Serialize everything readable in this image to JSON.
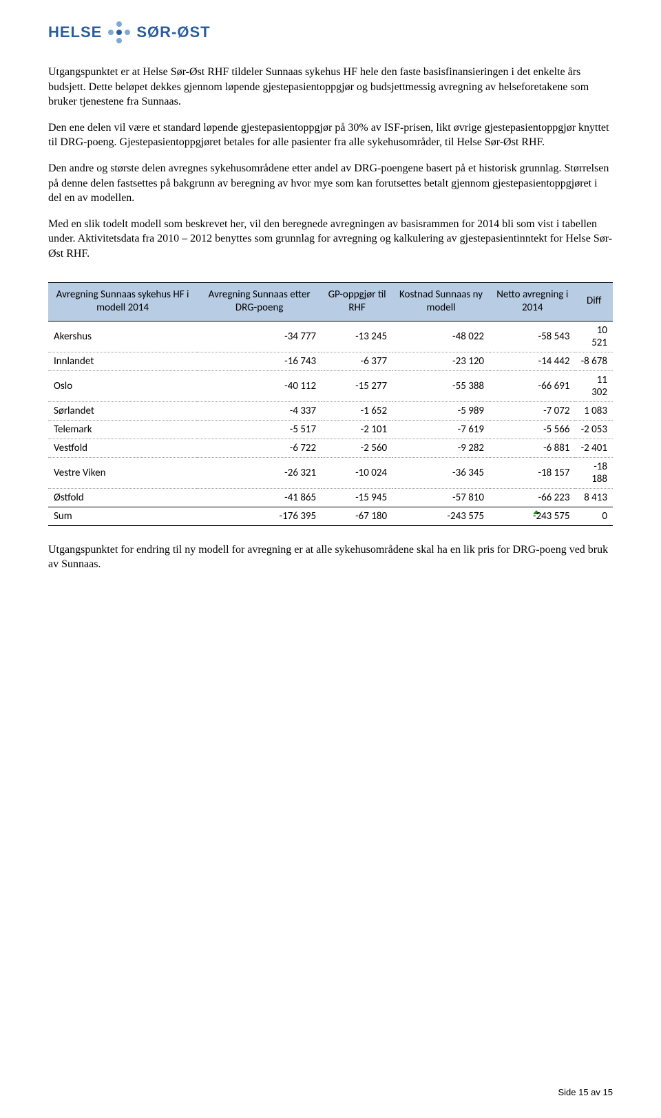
{
  "logo": {
    "left": "HELSE",
    "right": "SØR-ØST"
  },
  "paragraphs": [
    "Utgangspunktet er at Helse Sør-Øst RHF tildeler Sunnaas sykehus HF hele den faste basisfinansieringen i det enkelte års budsjett. Dette beløpet dekkes gjennom løpende gjestepasientoppgjør og budsjettmessig avregning av helseforetakene som bruker tjenestene fra Sunnaas.",
    "Den ene delen vil være et standard løpende gjestepasientoppgjør på 30% av ISF-prisen, likt øvrige gjestepasientoppgjør knyttet til DRG-poeng. Gjestepasientoppgjøret betales for alle pasienter fra alle sykehusområder, til Helse Sør-Øst RHF.",
    "Den andre og største delen avregnes sykehusområdene etter andel av DRG-poengene basert på et historisk grunnlag. Størrelsen på denne delen fastsettes på bakgrunn av beregning av hvor mye som kan forutsettes betalt gjennom gjestepasientoppgjøret i del en av modellen.",
    "Med en slik todelt modell som beskrevet her, vil den beregnede avregningen av basisrammen for 2014 bli som vist i tabellen under. Aktivitetsdata fra 2010 – 2012 benyttes som grunnlag for avregning og kalkulering av gjestepasientinntekt for Helse Sør-Øst RHF."
  ],
  "table": {
    "headers": [
      "Avregning Sunnaas sykehus HF i modell 2014",
      "Avregning Sunnaas etter DRG-poeng",
      "GP-oppgjør til RHF",
      "Kostnad Sunnaas ny modell",
      "Netto avregning i 2014",
      "Diff"
    ],
    "header_bg": "#b8cce4",
    "rows": [
      [
        "Akershus",
        "-34 777",
        "-13 245",
        "-48 022",
        "-58 543",
        "10 521"
      ],
      [
        "Innlandet",
        "-16 743",
        "-6 377",
        "-23 120",
        "-14 442",
        "-8 678"
      ],
      [
        "Oslo",
        "-40 112",
        "-15 277",
        "-55 388",
        "-66 691",
        "11 302"
      ],
      [
        "Sørlandet",
        "-4 337",
        "-1 652",
        "-5 989",
        "-7 072",
        "1 083"
      ],
      [
        "Telemark",
        "-5 517",
        "-2 101",
        "-7 619",
        "-5 566",
        "-2 053"
      ],
      [
        "Vestfold",
        "-6 722",
        "-2 560",
        "-9 282",
        "-6 881",
        "-2 401"
      ],
      [
        "Vestre Viken",
        "-26 321",
        "-10 024",
        "-36 345",
        "-18 157",
        "-18 188"
      ],
      [
        "Østfold",
        "-41 865",
        "-15 945",
        "-57 810",
        "-66 223",
        "8 413"
      ]
    ],
    "sum_row": [
      "Sum",
      "-176 395",
      "-67 180",
      "-243 575",
      "-243 575",
      "0"
    ],
    "marker_cell": {
      "row_type": "sum",
      "col": 4
    }
  },
  "closing_paragraph": "Utgangspunktet for endring til ny modell for avregning er at alle sykehusområdene skal ha en lik pris for DRG-poeng ved bruk av Sunnaas.",
  "footer": "Side 15 av 15"
}
